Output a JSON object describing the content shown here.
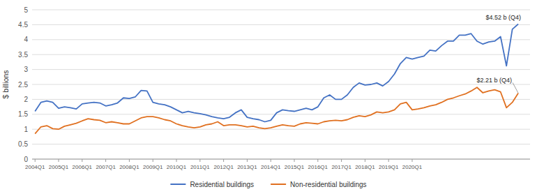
{
  "chart_data": {
    "type": "line",
    "y_label": "$ billions",
    "categories": [
      "2004Q1",
      null,
      null,
      null,
      "2005Q1",
      null,
      null,
      null,
      "2006Q1",
      null,
      null,
      null,
      "2007Q1",
      null,
      null,
      null,
      "2008Q1",
      null,
      null,
      null,
      "2009Q1",
      null,
      null,
      null,
      "2010Q1",
      null,
      null,
      null,
      "2011Q1",
      null,
      null,
      null,
      "2012Q1",
      null,
      null,
      null,
      "2013Q1",
      null,
      null,
      null,
      "2014Q1",
      null,
      null,
      null,
      "2015Q1",
      null,
      null,
      null,
      "2016Q1",
      null,
      null,
      null,
      "2017Q1",
      null,
      null,
      null,
      "2018Q1",
      null,
      null,
      null,
      "2019Q1",
      null,
      null,
      null,
      "2020Q1",
      null,
      null,
      null,
      null,
      null,
      null,
      null,
      null,
      null,
      null,
      null,
      null,
      null,
      null,
      null,
      null,
      null,
      null
    ],
    "series": [
      {
        "name": "Residential buildings",
        "color": "#4472C4",
        "values": [
          1.6,
          1.9,
          1.95,
          1.9,
          1.7,
          1.75,
          1.72,
          1.68,
          1.85,
          1.88,
          1.9,
          1.88,
          1.78,
          1.82,
          1.88,
          2.05,
          2.03,
          2.08,
          2.3,
          2.28,
          1.9,
          1.85,
          1.82,
          1.75,
          1.65,
          1.55,
          1.6,
          1.55,
          1.52,
          1.48,
          1.42,
          1.38,
          1.35,
          1.4,
          1.55,
          1.65,
          1.4,
          1.35,
          1.32,
          1.25,
          1.3,
          1.55,
          1.65,
          1.62,
          1.6,
          1.65,
          1.7,
          1.65,
          1.75,
          2.05,
          2.15,
          2.0,
          2.0,
          2.15,
          2.4,
          2.55,
          2.48,
          2.5,
          2.55,
          2.45,
          2.6,
          2.85,
          3.2,
          3.4,
          3.35,
          3.4,
          3.45,
          3.65,
          3.62,
          3.8,
          3.95,
          3.95,
          4.15,
          4.15,
          4.2,
          3.95,
          3.85,
          3.92,
          3.95,
          4.1,
          3.12,
          4.35,
          4.52
        ]
      },
      {
        "name": "Non-residential buildings",
        "color": "#E07020",
        "values": [
          0.85,
          1.08,
          1.12,
          1.02,
          1.0,
          1.1,
          1.15,
          1.2,
          1.28,
          1.35,
          1.32,
          1.3,
          1.22,
          1.25,
          1.22,
          1.18,
          1.18,
          1.28,
          1.38,
          1.42,
          1.42,
          1.38,
          1.32,
          1.28,
          1.18,
          1.12,
          1.08,
          1.05,
          1.08,
          1.15,
          1.18,
          1.25,
          1.12,
          1.15,
          1.15,
          1.12,
          1.08,
          1.1,
          1.05,
          1.02,
          1.05,
          1.1,
          1.15,
          1.12,
          1.1,
          1.18,
          1.22,
          1.2,
          1.18,
          1.25,
          1.28,
          1.3,
          1.28,
          1.32,
          1.4,
          1.45,
          1.42,
          1.48,
          1.58,
          1.55,
          1.58,
          1.65,
          1.85,
          1.9,
          1.65,
          1.68,
          1.72,
          1.78,
          1.82,
          1.9,
          2.0,
          2.05,
          2.12,
          2.18,
          2.28,
          2.4,
          2.22,
          2.28,
          2.32,
          2.25,
          1.72,
          1.9,
          2.21
        ]
      }
    ],
    "annotations": [
      "$4.52 b (Q4)",
      "$2.21 b (Q4)"
    ],
    "ylim": [
      0,
      5
    ],
    "yticks": [
      0,
      0.5,
      1,
      1.5,
      2,
      2.5,
      3,
      3.5,
      4,
      4.5,
      5
    ],
    "grid": true,
    "legend": "bottom"
  }
}
